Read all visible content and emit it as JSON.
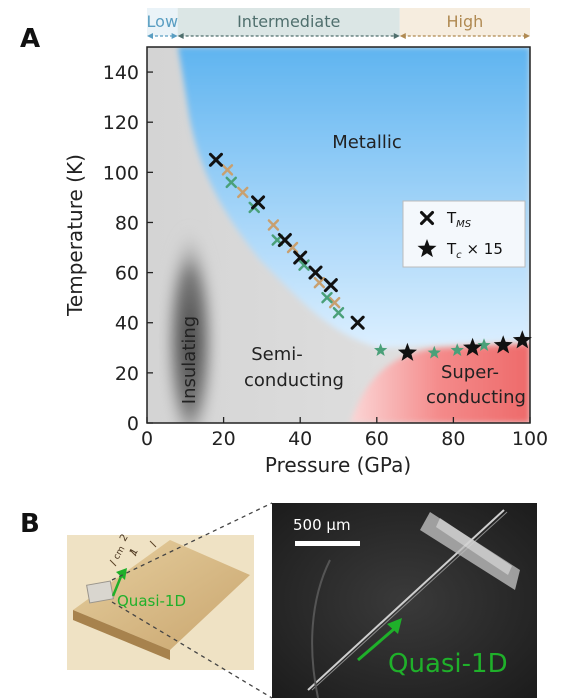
{
  "panel_a_label": "A",
  "panel_b_label": "B",
  "pressure_bands": [
    {
      "label": "Low",
      "from": 0,
      "to": 8,
      "color": "#5a9ec2",
      "fill": "#eaf3f8"
    },
    {
      "label": "Intermediate",
      "from": 8,
      "to": 66,
      "color": "#4f6f6d",
      "fill": "#dbe6e5"
    },
    {
      "label": "High",
      "from": 66,
      "to": 100,
      "color": "#b08a52",
      "fill": "#f6eddf"
    }
  ],
  "chart_data": {
    "type": "scatter",
    "xlabel": "Pressure (GPa)",
    "ylabel": "Temperature (K)",
    "xlim": [
      0,
      100
    ],
    "ylim": [
      0,
      150
    ],
    "xticks": [
      0,
      20,
      40,
      60,
      80,
      100
    ],
    "yticks": [
      0,
      20,
      40,
      60,
      80,
      100,
      120,
      140
    ],
    "regions": {
      "metallic": "Metallic",
      "insulating": "Insulating",
      "semiconducting": [
        "Semi-",
        "conducting"
      ],
      "superconducting": [
        "Super-",
        "conducting"
      ]
    },
    "legend": [
      "T_MS",
      "T_c × 15"
    ],
    "legend_position": "right-middle",
    "series": [
      {
        "name": "T_MS",
        "marker": "cross",
        "color": "#111111",
        "points": [
          [
            18,
            105
          ],
          [
            29,
            88
          ],
          [
            36,
            73
          ],
          [
            40,
            66
          ],
          [
            44,
            60
          ],
          [
            48,
            55
          ],
          [
            55,
            40
          ]
        ]
      },
      {
        "name": "T_MS",
        "marker": "cross",
        "color": "#c8a070",
        "points": [
          [
            21,
            101
          ],
          [
            25,
            92
          ],
          [
            33,
            79
          ],
          [
            38,
            70
          ],
          [
            45,
            56
          ],
          [
            49,
            48
          ]
        ]
      },
      {
        "name": "T_MS",
        "marker": "cross",
        "color": "#4aa079",
        "points": [
          [
            22,
            96
          ],
          [
            28,
            86
          ],
          [
            34,
            73
          ],
          [
            41,
            63
          ],
          [
            47,
            50
          ],
          [
            50,
            44
          ]
        ]
      },
      {
        "name": "T_c × 15",
        "marker": "star",
        "color": "#111111",
        "points": [
          [
            68,
            28
          ],
          [
            85,
            30
          ],
          [
            93,
            31
          ],
          [
            98,
            33
          ]
        ]
      },
      {
        "name": "T_c × 15",
        "marker": "star",
        "color": "#4aa079",
        "points": [
          [
            61,
            29
          ],
          [
            75,
            28
          ],
          [
            81,
            29
          ],
          [
            88,
            31
          ]
        ]
      }
    ]
  },
  "panel_b": {
    "ruler_numbers": [
      "1",
      "2"
    ],
    "ruler_unit": "cm",
    "photo_label": "Quasi-1D",
    "scale_bar": "500 μm",
    "micrograph_label": "Quasi-1D",
    "accent_color": "#1fb02a"
  }
}
